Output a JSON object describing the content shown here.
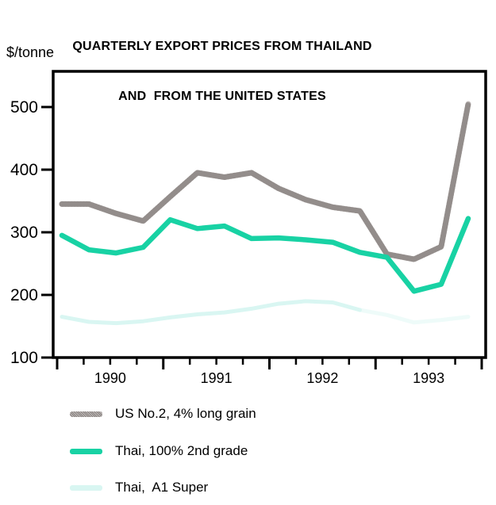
{
  "title": {
    "line1": "QUARTERLY EXPORT PRICES FROM THAILAND",
    "line2": "AND  FROM THE UNITED STATES"
  },
  "y_axis_units": "$/tonne",
  "chart_data": {
    "type": "line",
    "x": [
      "1990Q1",
      "1990Q2",
      "1990Q3",
      "1990Q4",
      "1991Q1",
      "1991Q2",
      "1991Q3",
      "1991Q4",
      "1992Q1",
      "1992Q2",
      "1992Q3",
      "1992Q4",
      "1993Q1",
      "1993Q2",
      "1993Q3",
      "1993Q4"
    ],
    "x_tick_years": [
      "1990",
      "1991",
      "1992",
      "1993"
    ],
    "ylabel": "$/tonne",
    "ylim": [
      100,
      557
    ],
    "yticks": [
      100,
      200,
      300,
      400,
      500
    ],
    "grid": false,
    "legend_position": "below",
    "series": [
      {
        "name": "US No.2, 4% long grain",
        "style": "dithered-gray",
        "color_base": "#beb8b6",
        "color_dot": "#7d7774",
        "values": [
          345,
          345,
          330,
          318,
          357,
          395,
          388,
          395,
          370,
          352,
          340,
          334,
          265,
          257,
          277,
          505
        ]
      },
      {
        "name": "Thai, 100% 2nd grade",
        "style": "solid",
        "color": "#18d2a4",
        "values": [
          295,
          272,
          267,
          276,
          320,
          306,
          310,
          290,
          291,
          288,
          284,
          268,
          260,
          206,
          217,
          322
        ]
      },
      {
        "name": "Thai,  A1 Super",
        "style": "faint",
        "color": "#d9f6f2",
        "fade_from_index": 11,
        "values": [
          165,
          157,
          155,
          158,
          164,
          169,
          172,
          178,
          186,
          190,
          188,
          176,
          168,
          156,
          160,
          165
        ]
      }
    ]
  },
  "legend": {
    "items": [
      {
        "label": "US No.2, 4% long grain"
      },
      {
        "label": "Thai, 100% 2nd grade"
      },
      {
        "label": "Thai,  A1 Super"
      }
    ]
  }
}
